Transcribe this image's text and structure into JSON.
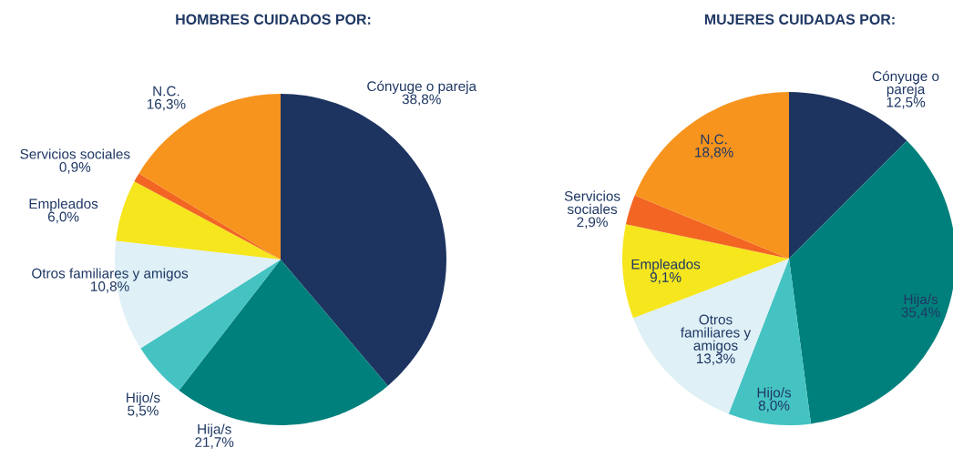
{
  "chart_data": [
    {
      "type": "pie",
      "title": "HOMBRES CUIDADOS POR:",
      "categories": [
        "Cónyuge o pareja",
        "Hija/s",
        "Hijo/s",
        "Otros familiares y amigos",
        "Empleados",
        "Servicios sociales",
        "N.C."
      ],
      "values": [
        38.8,
        21.7,
        5.5,
        10.8,
        6.0,
        0.9,
        16.3
      ],
      "value_labels": [
        "38,8%",
        "21,7%",
        "5,5%",
        "10,8%",
        "6,0%",
        "0,9%",
        "16,3%"
      ],
      "colors": [
        "#1d3461",
        "#00807c",
        "#45c3c3",
        "#dff0f6",
        "#f5e61e",
        "#f26522",
        "#f7941d"
      ]
    },
    {
      "type": "pie",
      "title": "MUJERES CUIDADAS POR:",
      "categories": [
        "Cónyuge o\npareja",
        "Hija/s",
        "Hijo/s",
        "Otros\nfamiliares y\namigos",
        "Empleados",
        "Servicios\nsociales",
        "N.C."
      ],
      "values": [
        12.5,
        35.4,
        8.0,
        13.3,
        9.1,
        2.9,
        18.8
      ],
      "value_labels": [
        "12,5%",
        "35,4%",
        "8,0%",
        "13,3%",
        "9,1%",
        "2,9%",
        "18,8%"
      ],
      "colors": [
        "#1d3461",
        "#00807c",
        "#45c3c3",
        "#dff0f6",
        "#f5e61e",
        "#f26522",
        "#f7941d"
      ]
    }
  ]
}
